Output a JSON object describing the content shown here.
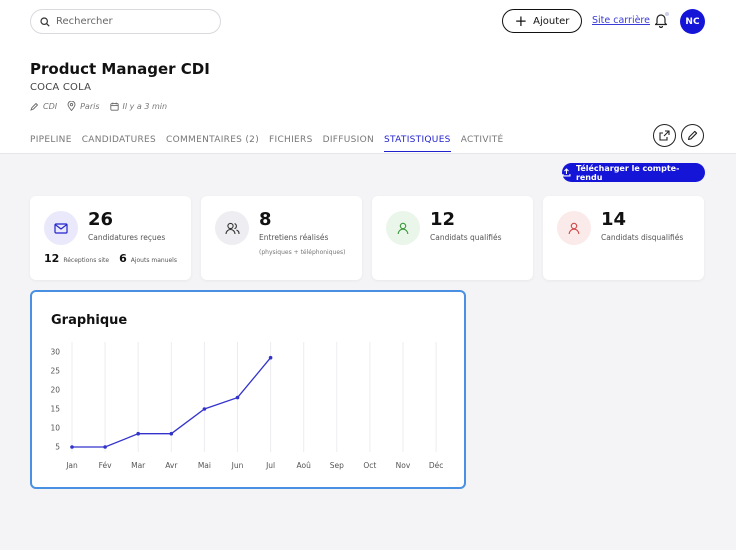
{
  "search": {
    "placeholder": "Rechercher"
  },
  "topbar": {
    "add_label": "Ajouter",
    "site_link": "Site carrière",
    "avatar": "NC"
  },
  "job": {
    "title": "Product Manager CDI",
    "company": "COCA COLA",
    "contract": "CDI",
    "location": "Paris",
    "posted": "Il y a 3 min"
  },
  "tabs": [
    "PIPELINE",
    "CANDIDATURES",
    "COMMENTAIRES (2)",
    "FICHIERS",
    "DIFFUSION",
    "STATISTIQUES",
    "ACTIVITÉ"
  ],
  "active_tab": "STATISTIQUES",
  "download_label": "Télécharger le compte-rendu",
  "cards": [
    {
      "value": "26",
      "label": "Candidatures reçues",
      "site_count": "12",
      "site_label": "Réceptions site",
      "manual_count": "6",
      "manual_label": "Ajouts manuels",
      "icon": "mail-icon",
      "icon_bg": "#e9e9fb",
      "icon_color": "#2222cc"
    },
    {
      "value": "8",
      "label": "Entretiens réalisés",
      "sub": "(physiques + téléphoniques)",
      "icon": "users-icon",
      "icon_bg": "#ededf2",
      "icon_color": "#333333"
    },
    {
      "value": "12",
      "label": "Candidats qualifiés",
      "icon": "user-check-icon",
      "icon_bg": "#eaf6ea",
      "icon_color": "#3a9a3a"
    },
    {
      "value": "14",
      "label": "Candidats disqualifiés",
      "icon": "user-x-icon",
      "icon_bg": "#fbeaea",
      "icon_color": "#d04848"
    }
  ],
  "chart_data": {
    "type": "line",
    "title": "Graphique",
    "categories": [
      "Jan",
      "Fév",
      "Mar",
      "Avr",
      "Mai",
      "Jun",
      "Jul",
      "Aoû",
      "Sep",
      "Oct",
      "Nov",
      "Déc"
    ],
    "values": [
      5,
      5,
      8.5,
      8.5,
      15,
      18,
      28.5,
      null,
      null,
      null,
      null,
      null
    ],
    "y_ticks": [
      5,
      10,
      15,
      20,
      25,
      30
    ],
    "ylim": [
      5,
      30
    ],
    "grid": "vertical",
    "line_color": "#3333cc"
  }
}
